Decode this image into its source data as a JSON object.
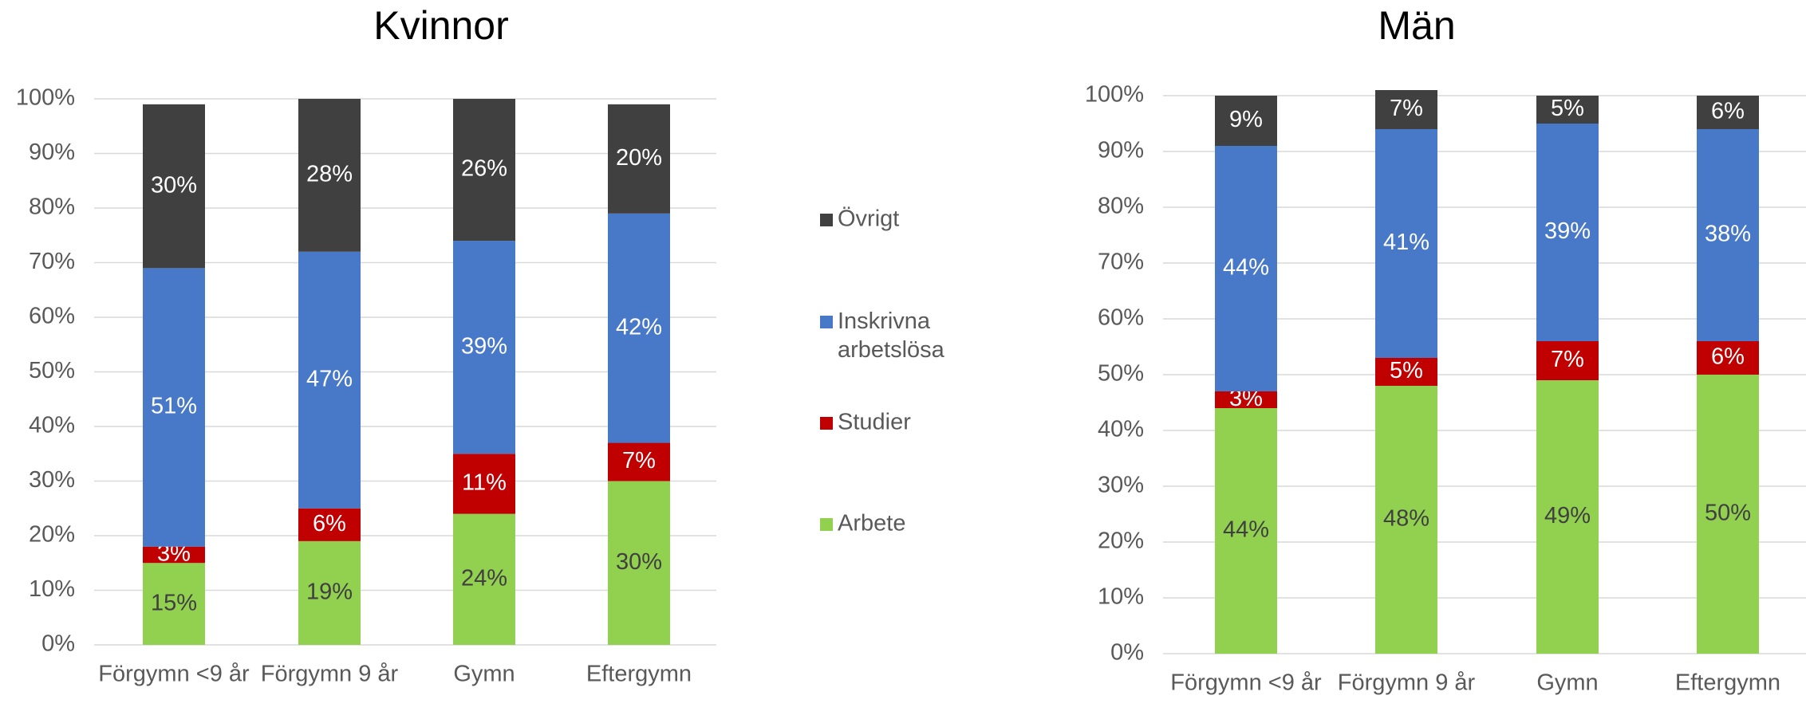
{
  "chart_data": [
    {
      "type": "stacked_bar",
      "title": "Kvinnor",
      "categories": [
        "Förgymn <9 år",
        "Förgymn 9 år",
        "Gymn",
        "Eftergymn"
      ],
      "ylim": [
        0,
        100
      ],
      "yticks": [
        {
          "value": 0,
          "label": "0%"
        },
        {
          "value": 10,
          "label": "10%"
        },
        {
          "value": 20,
          "label": "20%"
        },
        {
          "value": 30,
          "label": "30%"
        },
        {
          "value": 40,
          "label": "40%"
        },
        {
          "value": 50,
          "label": "50%"
        },
        {
          "value": 60,
          "label": "60%"
        },
        {
          "value": 70,
          "label": "70%"
        },
        {
          "value": 80,
          "label": "80%"
        },
        {
          "value": 90,
          "label": "90%"
        },
        {
          "value": 100,
          "label": "100%"
        }
      ],
      "grid": true,
      "series": [
        {
          "name": "Arbete",
          "color": "#92d050",
          "values": [
            15,
            19,
            24,
            30
          ],
          "value_labels": [
            "15%",
            "19%",
            "24%",
            "30%"
          ]
        },
        {
          "name": "Studier",
          "color": "#c00000",
          "values": [
            3,
            6,
            11,
            7
          ],
          "value_labels": [
            "3%",
            "6%",
            "11%",
            "7%"
          ]
        },
        {
          "name": "Inskrivna arbetslösa",
          "color": "#4878c8",
          "values": [
            51,
            47,
            39,
            42
          ],
          "value_labels": [
            "51%",
            "47%",
            "39%",
            "42%"
          ]
        },
        {
          "name": "Övrigt",
          "color": "#404040",
          "values": [
            30,
            28,
            26,
            20
          ],
          "value_labels": [
            "30%",
            "28%",
            "26%",
            "20%"
          ]
        }
      ]
    },
    {
      "type": "stacked_bar",
      "title": "Män",
      "categories": [
        "Förgymn <9 år",
        "Förgymn 9 år",
        "Gymn",
        "Eftergymn"
      ],
      "ylim": [
        0,
        100
      ],
      "yticks": [
        {
          "value": 0,
          "label": "0%"
        },
        {
          "value": 10,
          "label": "10%"
        },
        {
          "value": 20,
          "label": "20%"
        },
        {
          "value": 30,
          "label": "30%"
        },
        {
          "value": 40,
          "label": "40%"
        },
        {
          "value": 50,
          "label": "50%"
        },
        {
          "value": 60,
          "label": "60%"
        },
        {
          "value": 70,
          "label": "70%"
        },
        {
          "value": 80,
          "label": "80%"
        },
        {
          "value": 90,
          "label": "90%"
        },
        {
          "value": 100,
          "label": "100%"
        }
      ],
      "grid": true,
      "series": [
        {
          "name": "Arbete",
          "color": "#92d050",
          "values": [
            44,
            48,
            49,
            50
          ],
          "value_labels": [
            "44%",
            "48%",
            "49%",
            "50%"
          ]
        },
        {
          "name": "Studier",
          "color": "#c00000",
          "values": [
            3,
            5,
            7,
            6
          ],
          "value_labels": [
            "3%",
            "5%",
            "7%",
            "6%"
          ]
        },
        {
          "name": "Inskrivna arbetslösa",
          "color": "#4878c8",
          "values": [
            44,
            41,
            39,
            38
          ],
          "value_labels": [
            "44%",
            "41%",
            "39%",
            "38%"
          ]
        },
        {
          "name": "Övrigt",
          "color": "#404040",
          "values": [
            9,
            7,
            5,
            6
          ],
          "value_labels": [
            "9%",
            "7%",
            "5%",
            "6%"
          ]
        }
      ]
    }
  ]
}
